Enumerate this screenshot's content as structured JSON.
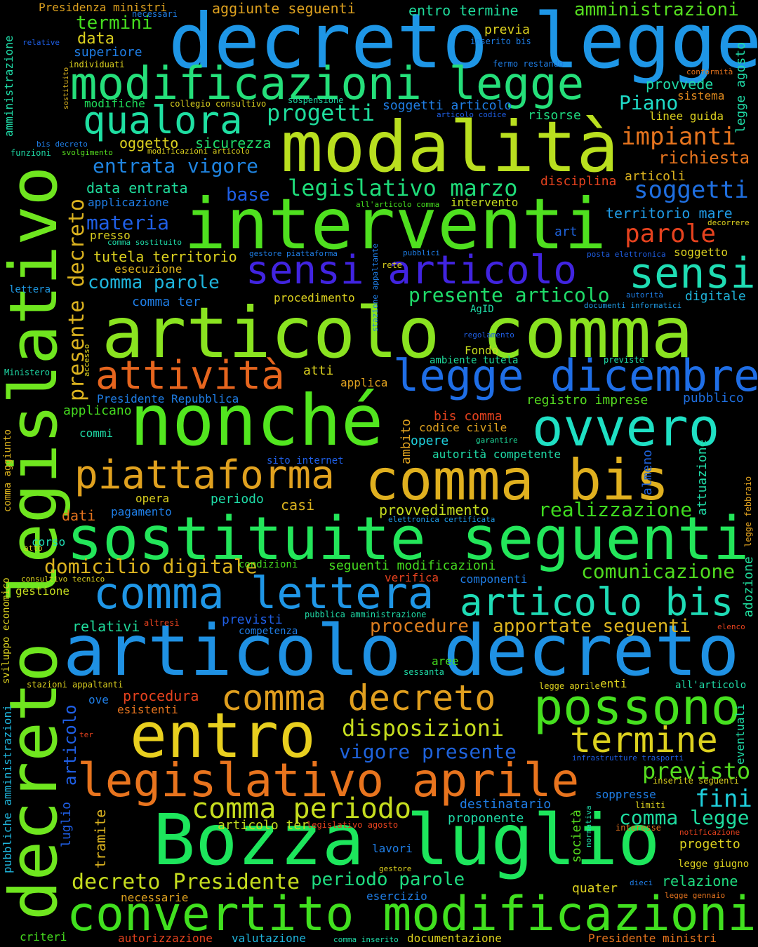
{
  "words": [
    {
      "text": "decreto legge",
      "color": "#1e96e6"
    },
    {
      "text": "modalità",
      "color": "#b9df1f"
    },
    {
      "text": "interventi",
      "color": "#4fe01f"
    },
    {
      "text": "articolo comma",
      "color": "#8ae320"
    },
    {
      "text": "nonché",
      "color": "#52e61f"
    },
    {
      "text": "sostituite seguenti",
      "color": "#23e65a"
    },
    {
      "text": "articolo decreto",
      "color": "#1f91e3"
    },
    {
      "text": "Bozza luglio",
      "color": "#1de65c"
    },
    {
      "text": "decreto legislativo",
      "color": "#6fe61f"
    },
    {
      "text": "modificazioni legge",
      "color": "#25df7a"
    },
    {
      "text": "sensi articolo",
      "color": "#4124e0"
    },
    {
      "text": "comma bis",
      "color": "#e0b01f"
    },
    {
      "text": "ovvero",
      "color": "#1fe0c4"
    },
    {
      "text": "legge dicembre",
      "color": "#1f6ee6"
    },
    {
      "text": "comma lettera",
      "color": "#1f96e6"
    },
    {
      "text": "articolo bis",
      "color": "#1fdcb6"
    },
    {
      "text": "entro",
      "color": "#e8cf1f"
    },
    {
      "text": "possono",
      "color": "#46e01f"
    },
    {
      "text": "legislativo aprile",
      "color": "#e8741e"
    },
    {
      "text": "convertito modificazioni",
      "color": "#41e01f"
    },
    {
      "text": "piattaforma",
      "color": "#e0a11f"
    },
    {
      "text": "attività",
      "color": "#e6651e"
    },
    {
      "text": "qualora",
      "color": "#1fdfa2"
    },
    {
      "text": "sensi",
      "color": "#1fdcb3"
    },
    {
      "text": "comma decreto",
      "color": "#e09f1f"
    },
    {
      "text": "termine",
      "color": "#dcd11f"
    },
    {
      "text": "comma periodo",
      "color": "#c6dd1f"
    },
    {
      "text": "progetti",
      "color": "#1fdc9c"
    },
    {
      "text": "impianti",
      "color": "#e6741e"
    },
    {
      "text": "soggetti",
      "color": "#1f6fe0"
    },
    {
      "text": "parole",
      "color": "#e6421e"
    },
    {
      "text": "entrata vigore",
      "color": "#1f84e0"
    },
    {
      "text": "legislativo marzo",
      "color": "#1fdc7a"
    },
    {
      "text": "presente articolo",
      "color": "#1fdc6a"
    },
    {
      "text": "comma parole",
      "color": "#1fb5dc"
    },
    {
      "text": "presente decreto",
      "color": "#dcb31f"
    },
    {
      "text": "disposizioni",
      "color": "#c6dd1f"
    },
    {
      "text": "vigore presente",
      "color": "#1f63dc"
    },
    {
      "text": "previsto",
      "color": "#55dc1f"
    },
    {
      "text": "fini",
      "color": "#1fcfdc"
    },
    {
      "text": "comma legge",
      "color": "#1fdca0"
    },
    {
      "text": "decreto Presidente",
      "color": "#c6dd1f"
    },
    {
      "text": "periodo parole",
      "color": "#1fdc80"
    },
    {
      "text": "domicilio digitale",
      "color": "#dcb31f"
    },
    {
      "text": "comunicazione",
      "color": "#4fdc1f"
    },
    {
      "text": "realizzazione",
      "color": "#3fdc1f"
    },
    {
      "text": "procedure",
      "color": "#dc7e1f"
    },
    {
      "text": "apportate seguenti",
      "color": "#dcb31f"
    },
    {
      "text": "Piano",
      "color": "#1fdcc8"
    },
    {
      "text": "richiesta",
      "color": "#e6741e"
    },
    {
      "text": "materia",
      "color": "#1f5fe6"
    },
    {
      "text": "base",
      "color": "#1f5fe6"
    },
    {
      "text": "amministrazioni",
      "color": "#55dc1f"
    },
    {
      "text": "aggiunte seguenti",
      "color": "#dca01f"
    },
    {
      "text": "entro termine",
      "color": "#1fdc9c"
    },
    {
      "text": "termini",
      "color": "#45dc1f"
    },
    {
      "text": "data",
      "color": "#dcd11f"
    },
    {
      "text": "superiore",
      "color": "#1f7ee6"
    },
    {
      "text": "modifiche",
      "color": "#1fdc5a"
    },
    {
      "text": "oggetto",
      "color": "#dcd11f"
    },
    {
      "text": "sicurezza",
      "color": "#1fdc6a"
    },
    {
      "text": "previa",
      "color": "#dcd11f"
    },
    {
      "text": "provvede",
      "color": "#1fdca8"
    },
    {
      "text": "sistema",
      "color": "#e08a1e"
    },
    {
      "text": "linee guida",
      "color": "#dcd11f"
    },
    {
      "text": "risorse",
      "color": "#1fdc80"
    },
    {
      "text": "soggetti articolo",
      "color": "#1f7ee6"
    },
    {
      "text": "articoli",
      "color": "#dcb31f"
    },
    {
      "text": "disciplina",
      "color": "#e6421e"
    },
    {
      "text": "data entrata",
      "color": "#1fdc9c"
    },
    {
      "text": "applicazione",
      "color": "#1f7ee6"
    },
    {
      "text": "intervento",
      "color": "#c6dd1f"
    },
    {
      "text": "territorio mare",
      "color": "#1f9be6"
    },
    {
      "text": "tutela territorio",
      "color": "#dcd11f"
    },
    {
      "text": "esecuzione",
      "color": "#dcb31f"
    },
    {
      "text": "presso",
      "color": "#dcd11f"
    },
    {
      "text": "art",
      "color": "#1f63dc"
    },
    {
      "text": "soggetto",
      "color": "#dcd11f"
    },
    {
      "text": "comma ter",
      "color": "#1f7ee6"
    },
    {
      "text": "procedimento",
      "color": "#dcd11f"
    },
    {
      "text": "digitale",
      "color": "#1fb5dc"
    },
    {
      "text": "Fondo",
      "color": "#c6dd1f"
    },
    {
      "text": "atti",
      "color": "#dcd11f"
    },
    {
      "text": "applica",
      "color": "#e0a11f"
    },
    {
      "text": "Presidente Repubblica",
      "color": "#1f7ee6"
    },
    {
      "text": "registro imprese",
      "color": "#55dc1f"
    },
    {
      "text": "pubblico",
      "color": "#1f6fe0"
    },
    {
      "text": "applicano",
      "color": "#45dc1f"
    },
    {
      "text": "commi",
      "color": "#1fdca8"
    },
    {
      "text": "bis comma",
      "color": "#e6421e"
    },
    {
      "text": "codice civile",
      "color": "#dca01f"
    },
    {
      "text": "opere",
      "color": "#1fcfdc"
    },
    {
      "text": "autorità competente",
      "color": "#1fdca8"
    },
    {
      "text": "ambito",
      "color": "#dca01f"
    },
    {
      "text": "attuazione",
      "color": "#1fdca8"
    },
    {
      "text": "almeno",
      "color": "#1f63dc"
    },
    {
      "text": "opera",
      "color": "#dcd11f"
    },
    {
      "text": "periodo",
      "color": "#1fdca8"
    },
    {
      "text": "casi",
      "color": "#dcb31f"
    },
    {
      "text": "dati",
      "color": "#e6741e"
    },
    {
      "text": "pagamento",
      "color": "#1f7ee6"
    },
    {
      "text": "provvedimento",
      "color": "#c6dd1f"
    },
    {
      "text": "corso",
      "color": "#1fdcb3"
    },
    {
      "text": "seguenti modificazioni",
      "color": "#45dc1f"
    },
    {
      "text": "verifica",
      "color": "#e6421e"
    },
    {
      "text": "componenti",
      "color": "#1f7ee6"
    },
    {
      "text": "gestione",
      "color": "#c6dd1f"
    },
    {
      "text": "relativi",
      "color": "#1fdc9c"
    },
    {
      "text": "previsti",
      "color": "#1f5fe6"
    },
    {
      "text": "aree",
      "color": "#45dc1f"
    },
    {
      "text": "procedura",
      "color": "#e6421e"
    },
    {
      "text": "esistenti",
      "color": "#e6741e"
    },
    {
      "text": "ove",
      "color": "#1f7ee6"
    },
    {
      "text": "enti",
      "color": "#dcd11f"
    },
    {
      "text": "articolo",
      "color": "#1f5fe6"
    },
    {
      "text": "luglio",
      "color": "#1f5fe6"
    },
    {
      "text": "tramite",
      "color": "#dcb31f"
    },
    {
      "text": "articolo ter",
      "color": "#c6dd1f"
    },
    {
      "text": "proponente",
      "color": "#1fdca8"
    },
    {
      "text": "destinatario",
      "color": "#1f7ee6"
    },
    {
      "text": "soppresse",
      "color": "#1f7ee6"
    },
    {
      "text": "società",
      "color": "#55dc1f"
    },
    {
      "text": "progetto",
      "color": "#dcd11f"
    },
    {
      "text": "relazione",
      "color": "#1fdc80"
    },
    {
      "text": "lavori",
      "color": "#1f7ee6"
    },
    {
      "text": "quater",
      "color": "#dcd11f"
    },
    {
      "text": "esercizio",
      "color": "#1f7ee6"
    },
    {
      "text": "necessarie",
      "color": "#dca01f"
    },
    {
      "text": "criteri",
      "color": "#45dc1f"
    },
    {
      "text": "autorizzazione",
      "color": "#e6421e"
    },
    {
      "text": "valutazione",
      "color": "#1fb5dc"
    },
    {
      "text": "documentazione",
      "color": "#dcd11f"
    },
    {
      "text": "Presidente ministri",
      "color": "#e6741e"
    },
    {
      "text": "Presidenza ministri",
      "color": "#dca01f"
    },
    {
      "text": "adozione",
      "color": "#1fdc9c"
    },
    {
      "text": "eventuali",
      "color": "#1fdca8"
    },
    {
      "text": "legge agosto",
      "color": "#1fdca8"
    },
    {
      "text": "amministrazione",
      "color": "#1fdca8"
    },
    {
      "text": "comma aggiunto",
      "color": "#dcb31f"
    },
    {
      "text": "sviluppo economico",
      "color": "#dcd11f"
    },
    {
      "text": "stazioni appaltanti",
      "color": "#dcd11f"
    },
    {
      "text": "pubbliche amministrazioni",
      "color": "#1fb5dc"
    },
    {
      "text": "legge febbraio",
      "color": "#e0a11f"
    },
    {
      "text": "necessari",
      "color": "#1f7ee6"
    },
    {
      "text": "relative",
      "color": "#1f5fe6"
    },
    {
      "text": "inserito bis",
      "color": "#1f7ee6"
    },
    {
      "text": "individuati",
      "color": "#dcd11f"
    },
    {
      "text": "sostituito",
      "color": "#dcb31f"
    },
    {
      "text": "fermo restando",
      "color": "#1f7ee6"
    },
    {
      "text": "conformità",
      "color": "#e6741e"
    },
    {
      "text": "sospensione",
      "color": "#1fdca8"
    },
    {
      "text": "collegio consultivo",
      "color": "#dcd11f"
    },
    {
      "text": "articolo codice",
      "color": "#1f5fe6"
    },
    {
      "text": "bis decreto",
      "color": "#1f7ee6"
    },
    {
      "text": "funzioni",
      "color": "#1fdca8"
    },
    {
      "text": "svolgimento",
      "color": "#55dc1f"
    },
    {
      "text": "modificazioni articolo",
      "color": "#dcd11f"
    },
    {
      "text": "all'articolo comma",
      "color": "#45dc1f"
    },
    {
      "text": "decorrere",
      "color": "#dcd11f"
    },
    {
      "text": "comma sostituito",
      "color": "#1fdca8"
    },
    {
      "text": "gestore piattaforma",
      "color": "#1f7ee6"
    },
    {
      "text": "pubblici",
      "color": "#1f7ee6"
    },
    {
      "text": "posta elettronica",
      "color": "#1f5fe6"
    },
    {
      "text": "rete",
      "color": "#dcd11f"
    },
    {
      "text": "stazione appaltante",
      "color": "#1f7ee6"
    },
    {
      "text": "lettera",
      "color": "#1f9be6"
    },
    {
      "text": "autorità",
      "color": "#1f7ee6"
    },
    {
      "text": "AgID",
      "color": "#1fdca8"
    },
    {
      "text": "documenti informatici",
      "color": "#1f9be6"
    },
    {
      "text": "regolamento",
      "color": "#1f5fe6"
    },
    {
      "text": "accesso",
      "color": "#dcd11f"
    },
    {
      "text": "ambiente tutela",
      "color": "#1fdc9c"
    },
    {
      "text": "previste",
      "color": "#1fdca8"
    },
    {
      "text": "Ministero",
      "color": "#1fdca8"
    },
    {
      "text": "garantire",
      "color": "#1fdc9c"
    },
    {
      "text": "sito internet",
      "color": "#1f5fe6"
    },
    {
      "text": "elettronica certificata",
      "color": "#1f9be6"
    },
    {
      "text": "atto",
      "color": "#dcd11f"
    },
    {
      "text": "condizioni",
      "color": "#45dc1f"
    },
    {
      "text": "consultivo tecnico",
      "color": "#dcd11f"
    },
    {
      "text": "altresì",
      "color": "#e6421e"
    },
    {
      "text": "pubblica amministrazione",
      "color": "#1fdca8"
    },
    {
      "text": "competenza",
      "color": "#1f7ee6"
    },
    {
      "text": "elenco",
      "color": "#e6421e"
    },
    {
      "text": "sessanta",
      "color": "#1fdca8"
    },
    {
      "text": "legge aprile",
      "color": "#dcd11f"
    },
    {
      "text": "all'articolo",
      "color": "#1fdca8"
    },
    {
      "text": "ter",
      "color": "#e6421e"
    },
    {
      "text": "infrastrutture trasporti",
      "color": "#1f5fe6"
    },
    {
      "text": "inserite seguenti",
      "color": "#dcd11f"
    },
    {
      "text": "limiti",
      "color": "#dcd11f"
    },
    {
      "text": "legislativo agosto",
      "color": "#e6421e"
    },
    {
      "text": "interesse",
      "color": "#e6741e"
    },
    {
      "text": "normativa",
      "color": "#1fdca8"
    },
    {
      "text": "notificazione",
      "color": "#e6421e"
    },
    {
      "text": "legge giugno",
      "color": "#dcd11f"
    },
    {
      "text": "gestore",
      "color": "#dcd11f"
    },
    {
      "text": "dieci",
      "color": "#1f7ee6"
    },
    {
      "text": "legge gennaio",
      "color": "#e6741e"
    },
    {
      "text": "comma inserito",
      "color": "#1fdca8"
    }
  ]
}
